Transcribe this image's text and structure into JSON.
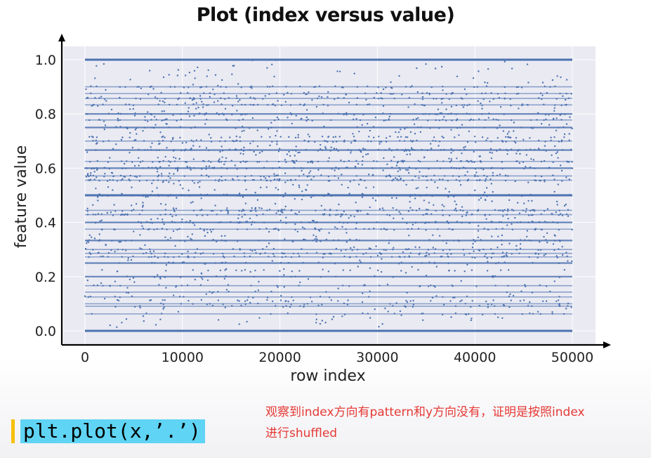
{
  "slide": {
    "code_snippet": "plt.plot(x,’.’)",
    "note_line1": "观察到index方向有pattern和y方向没有，证明是按照index",
    "note_line2": "进行shuffled"
  },
  "colors": {
    "points": "#4c72b0",
    "plot_bg": "#eaeaf2",
    "grid": "#ffffff",
    "code_bg": "#5fd4f4",
    "code_accent": "#f6c10c",
    "note": "#e53935"
  },
  "chart_data": {
    "type": "scatter",
    "title": "Plot (index versus value)",
    "xlabel": "row index",
    "ylabel": "feature value",
    "xlim": [
      -2500,
      52500
    ],
    "ylim": [
      -0.05,
      1.05
    ],
    "x_ticks": [
      0,
      10000,
      20000,
      30000,
      40000,
      50000
    ],
    "x_tick_labels": [
      "0",
      "10000",
      "20000",
      "30000",
      "40000",
      "50000"
    ],
    "y_ticks": [
      0.0,
      0.2,
      0.4,
      0.6,
      0.8,
      1.0
    ],
    "y_tick_labels": [
      "0.0",
      "0.2",
      "0.4",
      "0.6",
      "0.8",
      "1.0"
    ],
    "grid": true,
    "n_points": 50000,
    "x_range": [
      0,
      50000
    ],
    "discrete_levels": [
      0.0,
      0.0625,
      0.0909,
      0.1,
      0.1111,
      0.125,
      0.1429,
      0.1667,
      0.2,
      0.2222,
      0.25,
      0.2727,
      0.2857,
      0.3,
      0.3333,
      0.375,
      0.4,
      0.4286,
      0.4444,
      0.5,
      0.5556,
      0.5714,
      0.6,
      0.625,
      0.6667,
      0.7,
      0.7143,
      0.75,
      0.7778,
      0.8,
      0.8333,
      0.8571,
      0.875,
      0.9,
      1.0
    ],
    "dense_levels": [
      0.0,
      0.5,
      1.0,
      0.3333,
      0.6667,
      0.25,
      0.75,
      0.2,
      0.4,
      0.6,
      0.8
    ],
    "density_bands": [
      {
        "from": 0.0,
        "to": 0.25,
        "density": "low"
      },
      {
        "from": 0.25,
        "to": 0.4,
        "density": "medium"
      },
      {
        "from": 0.4,
        "to": 0.5,
        "density": "high"
      },
      {
        "from": 0.5,
        "to": 0.7,
        "density": "high"
      },
      {
        "from": 0.7,
        "to": 0.9,
        "density": "medium"
      },
      {
        "from": 0.9,
        "to": 1.0,
        "density": "low"
      }
    ]
  }
}
